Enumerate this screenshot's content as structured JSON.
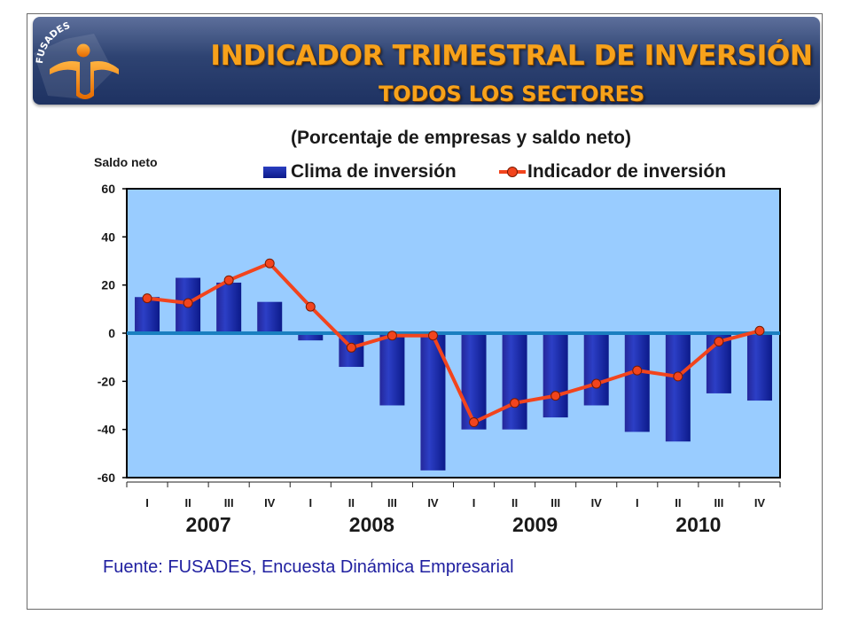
{
  "header": {
    "logo_text": "FUSADES",
    "title": "INDICADOR TRIMESTRAL DE INVERSIÓN",
    "subtitle": "TODOS LOS SECTORES"
  },
  "colors": {
    "banner": "#2e4372",
    "title_text": "#f7a21b",
    "plot_background": "#99ccff",
    "bar": "#0c1a8a",
    "line": "#f2441d",
    "zero_line": "#1a7fc0",
    "source_text": "#2020a0"
  },
  "chart_data": {
    "type": "bar",
    "subtitle": "(Porcentaje de empresas y saldo neto)",
    "ylabel": "Saldo neto",
    "ylim": [
      -60,
      60
    ],
    "yticks": [
      60,
      40,
      20,
      0,
      -20,
      -40,
      -60
    ],
    "grid": false,
    "legend_position": "top",
    "categories": [
      "I",
      "II",
      "III",
      "IV",
      "I",
      "II",
      "III",
      "IV",
      "I",
      "II",
      "III",
      "IV",
      "I",
      "II",
      "III",
      "IV"
    ],
    "years": [
      {
        "label": "2007",
        "start": 0,
        "end": 3
      },
      {
        "label": "2008",
        "start": 4,
        "end": 7
      },
      {
        "label": "2009",
        "start": 8,
        "end": 11
      },
      {
        "label": "2010",
        "start": 12,
        "end": 15
      }
    ],
    "series": [
      {
        "name": "Clima de inversión",
        "type": "bar",
        "values": [
          15,
          23,
          21,
          13,
          -3,
          -14,
          -30,
          -57,
          -40,
          -40,
          -35,
          -30,
          -41,
          -45,
          -25,
          -28
        ]
      },
      {
        "name": "Indicador de inversión",
        "type": "line",
        "values": [
          14.5,
          12.5,
          22,
          29,
          11,
          -6,
          -1,
          -1,
          -37,
          -29,
          -26,
          -21,
          -15.5,
          -18,
          -3.5,
          1
        ]
      }
    ],
    "source": "Fuente: FUSADES, Encuesta Dinámica Empresarial"
  }
}
